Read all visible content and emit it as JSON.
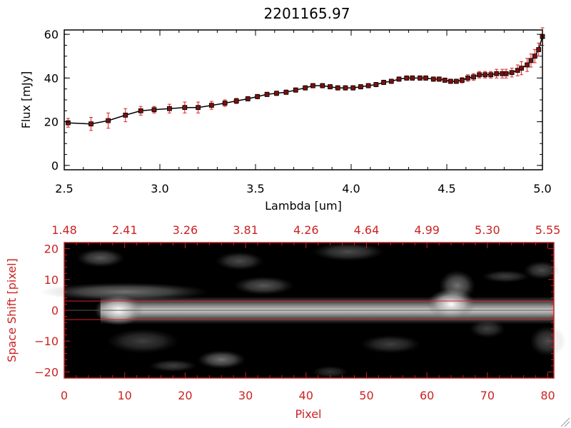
{
  "chart_data": [
    {
      "type": "line",
      "title": "2201165.97",
      "xlabel": "Lambda [um]",
      "ylabel": "Flux [mJy]",
      "xlim": [
        2.5,
        5.0
      ],
      "ylim": [
        -2,
        62
      ],
      "xticks": [
        "2.5",
        "3.0",
        "3.5",
        "4.0",
        "4.5",
        "5.0"
      ],
      "yticks": [
        "0",
        "20",
        "40",
        "60"
      ],
      "colors": {
        "line": "#000000",
        "marker": "#7a1010",
        "errorbar": "#dd2222"
      },
      "x": [
        2.52,
        2.64,
        2.73,
        2.82,
        2.9,
        2.97,
        3.05,
        3.13,
        3.2,
        3.27,
        3.34,
        3.4,
        3.46,
        3.51,
        3.56,
        3.61,
        3.66,
        3.71,
        3.76,
        3.8,
        3.85,
        3.89,
        3.93,
        3.97,
        4.01,
        4.05,
        4.09,
        4.13,
        4.17,
        4.21,
        4.25,
        4.29,
        4.32,
        4.36,
        4.39,
        4.43,
        4.46,
        4.49,
        4.52,
        4.55,
        4.58,
        4.61,
        4.64,
        4.67,
        4.7,
        4.73,
        4.76,
        4.79,
        4.81,
        4.84,
        4.87,
        4.89,
        4.92,
        4.94,
        4.96,
        4.98,
        5.0
      ],
      "y": [
        19.5,
        19.0,
        20.5,
        23.0,
        25.0,
        25.5,
        26.0,
        26.5,
        26.5,
        27.5,
        28.5,
        29.5,
        30.5,
        31.5,
        32.5,
        33.0,
        33.5,
        34.5,
        35.5,
        36.5,
        36.5,
        36.0,
        35.5,
        35.5,
        35.5,
        36.0,
        36.5,
        37.0,
        38.0,
        38.5,
        39.5,
        40.0,
        40.0,
        40.0,
        40.0,
        39.5,
        39.5,
        39.0,
        38.5,
        38.5,
        39.0,
        40.0,
        40.5,
        41.5,
        41.5,
        41.5,
        42.0,
        42.0,
        42.0,
        42.5,
        43.5,
        44.5,
        46.0,
        48.0,
        50.0,
        53.0,
        59.0
      ],
      "yerr": [
        2.0,
        3.0,
        3.5,
        3.0,
        2.0,
        1.5,
        2.0,
        2.5,
        2.5,
        1.8,
        1.5,
        1.2,
        1.0,
        1.0,
        1.0,
        1.0,
        1.0,
        1.0,
        1.0,
        1.0,
        1.0,
        1.0,
        1.0,
        1.0,
        1.0,
        1.0,
        1.0,
        1.0,
        1.0,
        1.0,
        1.0,
        1.0,
        1.0,
        1.0,
        1.0,
        1.0,
        1.0,
        1.0,
        1.0,
        1.0,
        1.2,
        1.5,
        1.5,
        1.5,
        1.5,
        1.5,
        2.0,
        2.0,
        2.0,
        2.0,
        2.5,
        3.0,
        3.0,
        3.0,
        3.0,
        3.0,
        4.0
      ]
    },
    {
      "type": "heatmap",
      "xlabel": "Pixel",
      "ylabel": "Space Shift [pixel]",
      "xlim": [
        0,
        81
      ],
      "ylim": [
        -22,
        22
      ],
      "xticks": [
        "0",
        "10",
        "20",
        "30",
        "40",
        "50",
        "60",
        "70",
        "80"
      ],
      "yticks": [
        "-20",
        "-10",
        "0",
        "10",
        "20"
      ],
      "top_ticks": [
        "1.48",
        "2.41",
        "3.26",
        "3.81",
        "4.26",
        "4.64",
        "4.99",
        "5.30",
        "5.55"
      ],
      "colors": {
        "axes": "#cc2222",
        "guide": "#dd2222",
        "center": "#555555"
      },
      "extraction_window": [
        -3,
        3
      ],
      "blobs": [
        {
          "px": 9,
          "dy": 0,
          "rx": 4,
          "ry": 5,
          "intensity": 1.0
        },
        {
          "px": 64,
          "dy": 2,
          "rx": 4,
          "ry": 5,
          "intensity": 1.0
        },
        {
          "px": 65,
          "dy": 8,
          "rx": 3,
          "ry": 5,
          "intensity": 0.45
        },
        {
          "px": 10,
          "dy": 6,
          "rx": 14,
          "ry": 3,
          "intensity": 0.45
        },
        {
          "px": 6,
          "dy": 17,
          "rx": 4,
          "ry": 3,
          "intensity": 0.35
        },
        {
          "px": 29,
          "dy": 16,
          "rx": 4,
          "ry": 3,
          "intensity": 0.3
        },
        {
          "px": 47,
          "dy": 19,
          "rx": 6,
          "ry": 3,
          "intensity": 0.3
        },
        {
          "px": 33,
          "dy": 8,
          "rx": 5,
          "ry": 3,
          "intensity": 0.35
        },
        {
          "px": 73,
          "dy": 11,
          "rx": 4,
          "ry": 2,
          "intensity": 0.25
        },
        {
          "px": 79,
          "dy": 13,
          "rx": 3,
          "ry": 3,
          "intensity": 0.3
        },
        {
          "px": 26,
          "dy": -16,
          "rx": 4,
          "ry": 3,
          "intensity": 0.45
        },
        {
          "px": 18,
          "dy": -18,
          "rx": 4,
          "ry": 2,
          "intensity": 0.25
        },
        {
          "px": 13,
          "dy": -10,
          "rx": 6,
          "ry": 4,
          "intensity": 0.25
        },
        {
          "px": 54,
          "dy": -11,
          "rx": 5,
          "ry": 3,
          "intensity": 0.25
        },
        {
          "px": 80,
          "dy": -10,
          "rx": 3,
          "ry": 5,
          "intensity": 0.3
        },
        {
          "px": 44,
          "dy": -20,
          "rx": 3,
          "ry": 2,
          "intensity": 0.2
        },
        {
          "px": 70,
          "dy": -6,
          "rx": 3,
          "ry": 3,
          "intensity": 0.25
        }
      ]
    }
  ]
}
